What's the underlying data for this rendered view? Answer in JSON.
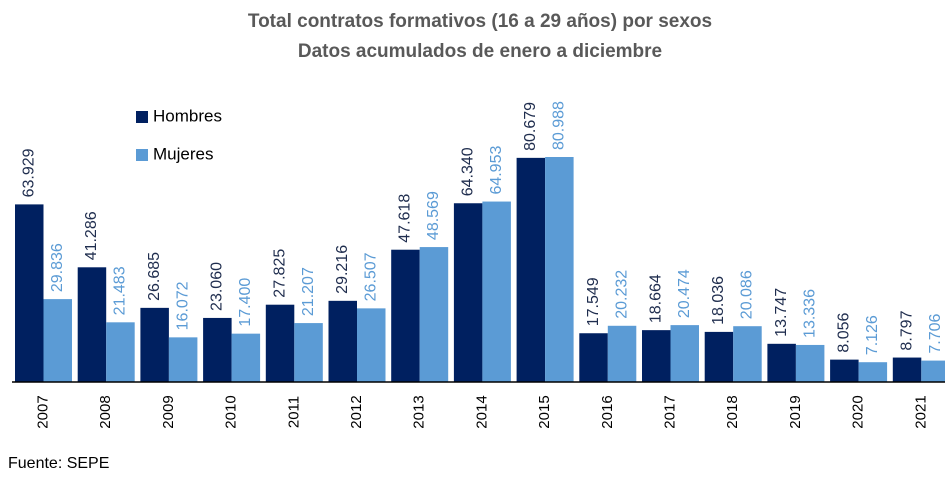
{
  "chart_data": {
    "type": "bar",
    "title": "Total contratos formativos (16 a 29 años) por sexos",
    "subtitle": "Datos acumulados de enero a diciembre",
    "source": "Fuente: SEPE",
    "categories": [
      "2007",
      "2008",
      "2009",
      "2010",
      "2011",
      "2012",
      "2013",
      "2014",
      "2015",
      "2016",
      "2017",
      "2018",
      "2019",
      "2020",
      "2021"
    ],
    "series": [
      {
        "name": "Hombres",
        "color": "#002060",
        "values": [
          63929,
          41286,
          26685,
          23060,
          27825,
          29216,
          47618,
          64340,
          80679,
          17549,
          18664,
          18036,
          13747,
          8056,
          8797
        ],
        "value_labels": [
          "63.929",
          "41.286",
          "26.685",
          "23.060",
          "27.825",
          "29.216",
          "47.618",
          "64.340",
          "80.679",
          "17.549",
          "18.664",
          "18.036",
          "13.747",
          "8.056",
          "8.797"
        ]
      },
      {
        "name": "Mujeres",
        "color": "#5b9bd5",
        "values": [
          29836,
          21483,
          16072,
          17400,
          21207,
          26507,
          48569,
          64953,
          80988,
          20232,
          20474,
          20086,
          13336,
          7126,
          7706
        ],
        "value_labels": [
          "29.836",
          "21.483",
          "16.072",
          "17.400",
          "21.207",
          "26.507",
          "48.569",
          "64.953",
          "80.988",
          "20.232",
          "20.474",
          "20.086",
          "13.336",
          "7.126",
          "7.706"
        ]
      }
    ],
    "legend": "upper left"
  }
}
